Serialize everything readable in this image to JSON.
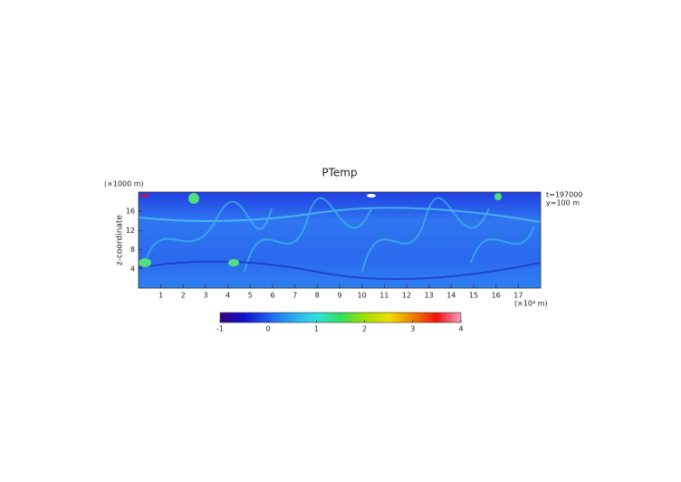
{
  "chart_data": {
    "type": "heatmap",
    "title": "PTemp",
    "y_unit_label": "(×1000 m)",
    "ylabel": "z-coordinate",
    "x_unit_label": "(×10⁴ m)",
    "annotations": [
      "t=197000",
      "y=100 m"
    ],
    "xlim": [
      0,
      18
    ],
    "xticks": [
      1,
      2,
      3,
      4,
      5,
      6,
      7,
      8,
      9,
      10,
      11,
      12,
      13,
      14,
      15,
      16,
      17
    ],
    "ylim": [
      0,
      20
    ],
    "yticks": [
      4,
      8,
      12,
      16
    ],
    "clim": [
      -1,
      4
    ],
    "cticks": [
      -1,
      0,
      1,
      2,
      3,
      4
    ],
    "colormap": [
      "#3a0080",
      "#1010d0",
      "#1e5ef0",
      "#2aa8f0",
      "#30e0e0",
      "#30e060",
      "#a0e000",
      "#f0e000",
      "#f08000",
      "#f01010",
      "#f0a0c0"
    ]
  }
}
